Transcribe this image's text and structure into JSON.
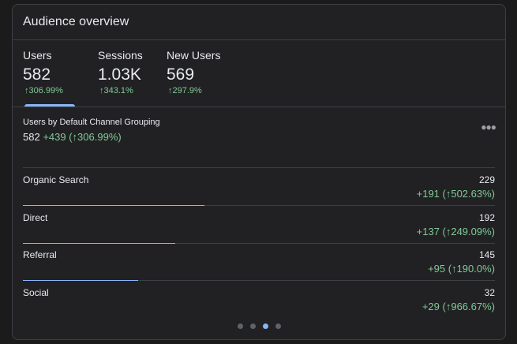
{
  "header": {
    "title": "Audience overview"
  },
  "metrics": [
    {
      "name": "Users",
      "value": "582",
      "change": "↑306.99%"
    },
    {
      "name": "Sessions",
      "value": "1.03K",
      "change": "↑343.1%"
    },
    {
      "name": "New Users",
      "value": "569",
      "change": "↑297.9%"
    }
  ],
  "breakdown": {
    "title": "Users by Default Channel Grouping",
    "total": "582",
    "change": "+439 (↑306.99%)",
    "rows": [
      {
        "label": "Organic Search",
        "value": 229,
        "change": "+191 (↑502.63%)"
      },
      {
        "label": "Direct",
        "value": 192,
        "change": "+137 (↑249.09%)"
      },
      {
        "label": "Referral",
        "value": 145,
        "change": "+95 (↑190.0%)"
      },
      {
        "label": "Social",
        "value": 32,
        "change": "+29 (↑966.67%)"
      }
    ]
  }
}
